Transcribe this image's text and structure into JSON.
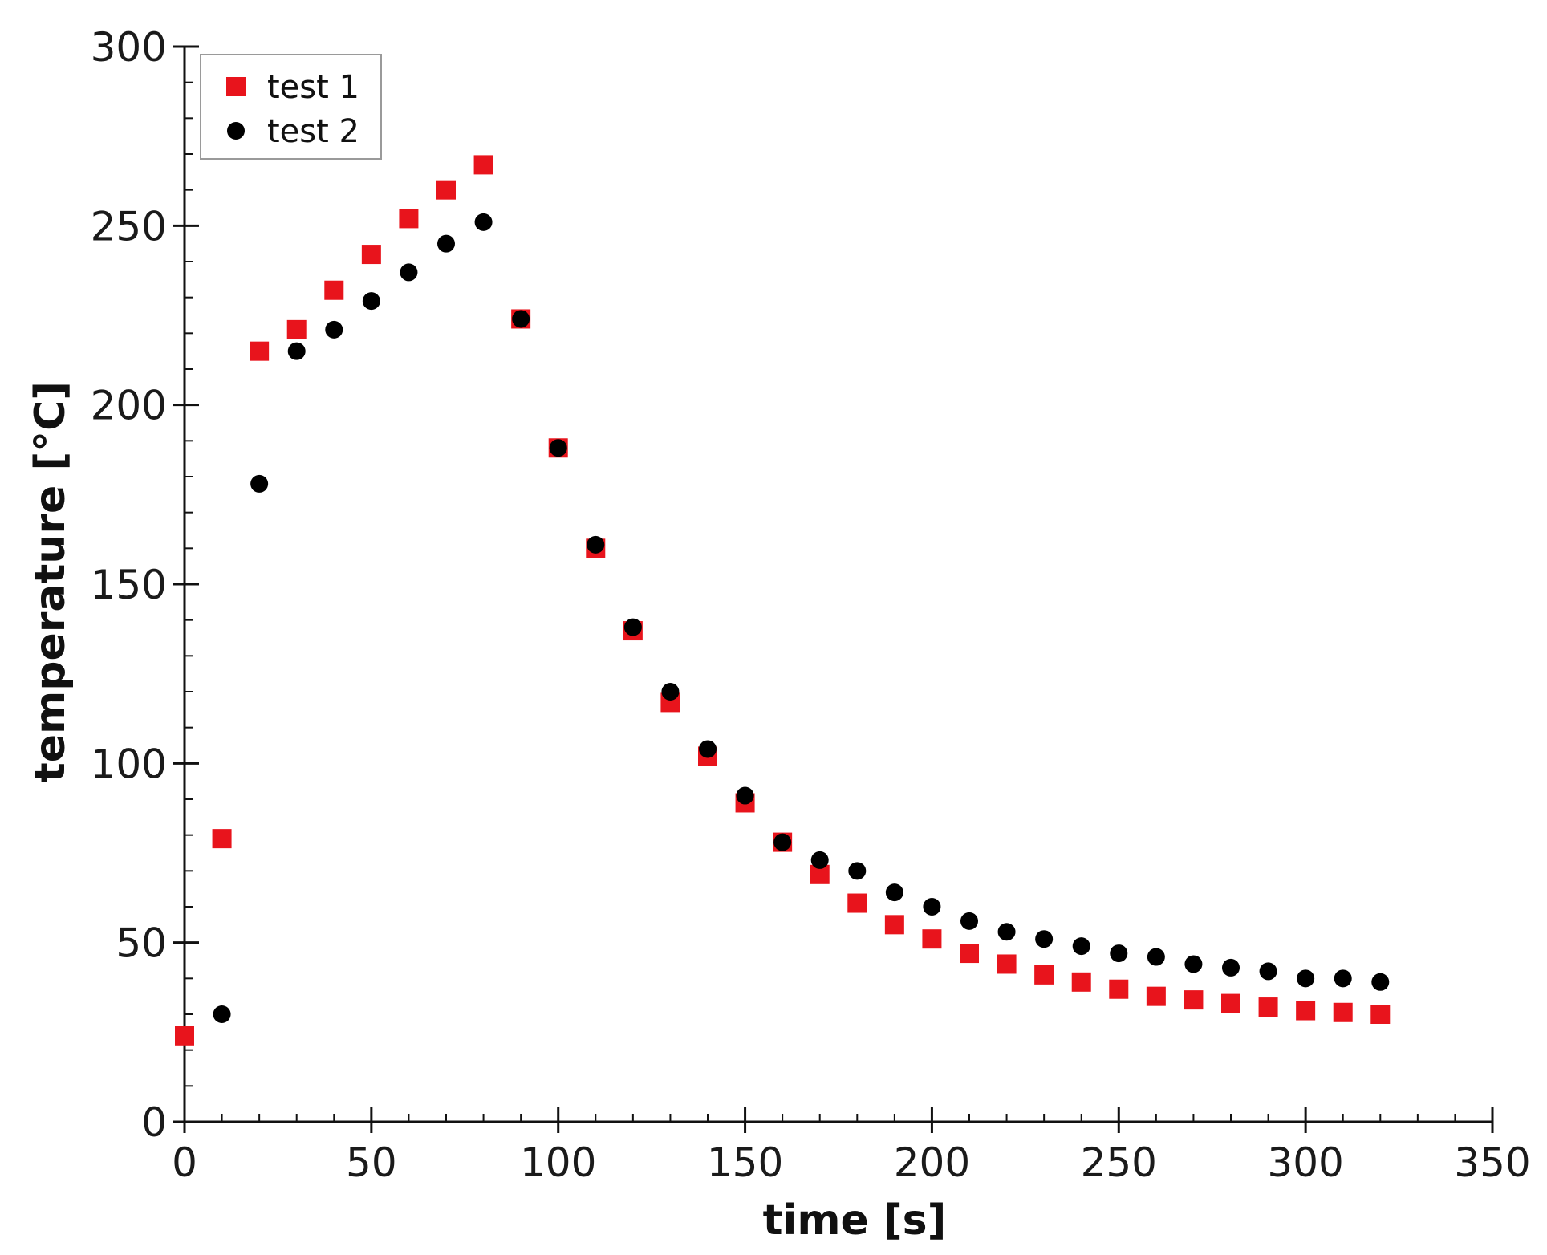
{
  "chart_data": {
    "type": "scatter",
    "title": "",
    "xlabel": "time [s]",
    "ylabel": "temperature [°C]",
    "xlim": [
      0,
      350
    ],
    "ylim": [
      0,
      300
    ],
    "x_ticks": [
      0,
      50,
      100,
      150,
      200,
      250,
      300,
      350
    ],
    "y_ticks": [
      0,
      50,
      100,
      150,
      200,
      250,
      300
    ],
    "grid": false,
    "legend_position": "top-left",
    "series": [
      {
        "name": "test 1",
        "marker": "square",
        "color": "#e8141c",
        "x": [
          0,
          10,
          20,
          30,
          40,
          50,
          60,
          70,
          80,
          90,
          100,
          110,
          120,
          130,
          140,
          150,
          160,
          170,
          180,
          190,
          200,
          210,
          220,
          230,
          240,
          250,
          260,
          270,
          280,
          290,
          300,
          310,
          320
        ],
        "y": [
          24,
          79,
          215,
          221,
          232,
          242,
          252,
          260,
          267,
          224,
          188,
          160,
          137,
          117,
          102,
          89,
          78,
          69,
          61,
          55,
          51,
          47,
          44,
          41,
          39,
          37,
          35,
          34,
          33,
          32,
          31,
          30.5,
          30
        ]
      },
      {
        "name": "test 2",
        "marker": "circle",
        "color": "#000000",
        "x": [
          10,
          20,
          30,
          40,
          50,
          60,
          70,
          80,
          90,
          100,
          110,
          120,
          130,
          140,
          150,
          160,
          170,
          180,
          190,
          200,
          210,
          220,
          230,
          240,
          250,
          260,
          270,
          280,
          290,
          300,
          310,
          320
        ],
        "y": [
          30,
          178,
          215,
          221,
          229,
          237,
          245,
          251,
          224,
          188,
          161,
          138,
          120,
          104,
          91,
          78,
          73,
          70,
          64,
          60,
          56,
          53,
          51,
          49,
          47,
          46,
          44,
          43,
          42,
          40,
          40,
          39
        ]
      }
    ]
  }
}
